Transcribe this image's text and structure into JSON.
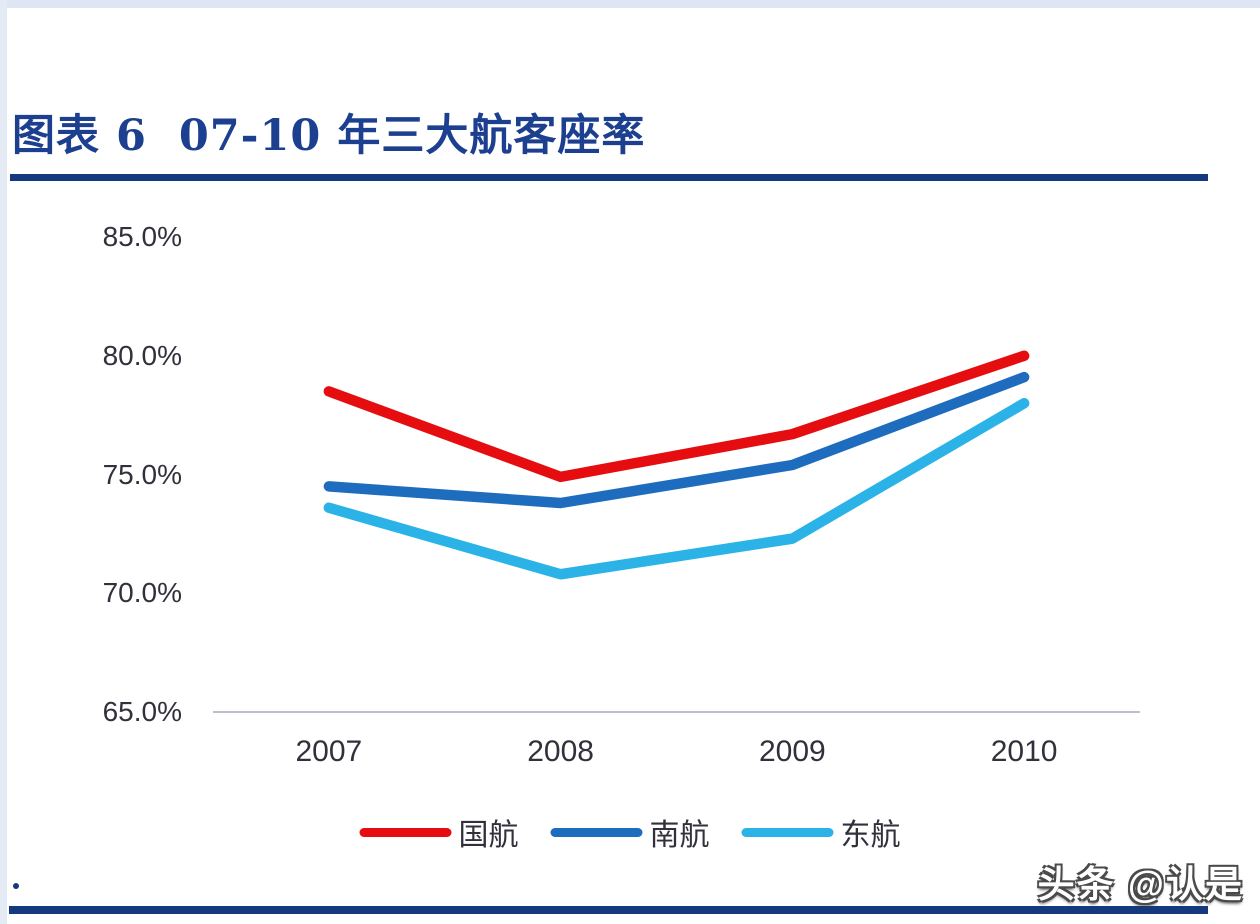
{
  "page": {
    "title": "图表 6  07-10 年三大航客座率",
    "watermark": "头条 @认是",
    "accent_navy": "#15397f",
    "title_color": "#1c3f8f"
  },
  "chart_data": {
    "type": "line",
    "title": "07-10 年三大航客座率",
    "categories": [
      "2007",
      "2008",
      "2009",
      "2010"
    ],
    "series": [
      {
        "name": "国航",
        "color": "#e60d10",
        "values": [
          78.5,
          74.9,
          76.7,
          80.0
        ]
      },
      {
        "name": "南航",
        "color": "#1e6cbd",
        "values": [
          74.5,
          73.8,
          75.4,
          79.1
        ]
      },
      {
        "name": "东航",
        "color": "#2bb3e8",
        "values": [
          73.6,
          70.8,
          72.3,
          78.0
        ]
      }
    ],
    "ylim": [
      65,
      85
    ],
    "ytick_step": 5,
    "ytick_labels": [
      "85.0%",
      "80.0%",
      "75.0%",
      "70.0%",
      "65.0%"
    ],
    "yaxis_format": "percent",
    "grid": false,
    "legend_position": "bottom",
    "axis_line_color": "#bcc0c8",
    "label_color": "#31313b"
  }
}
